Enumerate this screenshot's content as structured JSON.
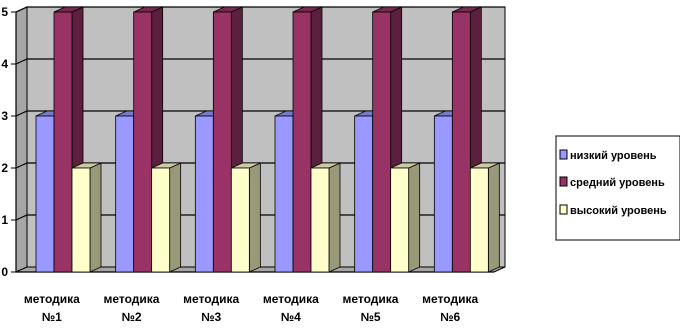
{
  "chart_data": {
    "type": "bar",
    "title": "",
    "xlabel": "",
    "ylabel": "",
    "categories": [
      {
        "line1": "методика",
        "line2": "№1"
      },
      {
        "line1": "методика",
        "line2": "№2"
      },
      {
        "line1": "методика",
        "line2": "№3"
      },
      {
        "line1": "методика",
        "line2": "№4"
      },
      {
        "line1": "методика",
        "line2": "№5"
      },
      {
        "line1": "методика",
        "line2": "№6"
      }
    ],
    "series": [
      {
        "name": "низкий уровень",
        "values": [
          3,
          3,
          3,
          3,
          3,
          3
        ],
        "color": "#9999ff"
      },
      {
        "name": "средний уровень",
        "values": [
          5,
          5,
          5,
          5,
          5,
          5
        ],
        "color": "#993366"
      },
      {
        "name": "высокий уровень",
        "values": [
          2,
          2,
          2,
          2,
          2,
          2
        ],
        "color": "#ffffcc"
      }
    ],
    "ylim": [
      0,
      5
    ],
    "yticks": [
      "0",
      "1",
      "2",
      "3",
      "4",
      "5"
    ],
    "grid": true,
    "legend_position": "right",
    "plot_background": "#c0c0c0",
    "style": "3d-column"
  }
}
